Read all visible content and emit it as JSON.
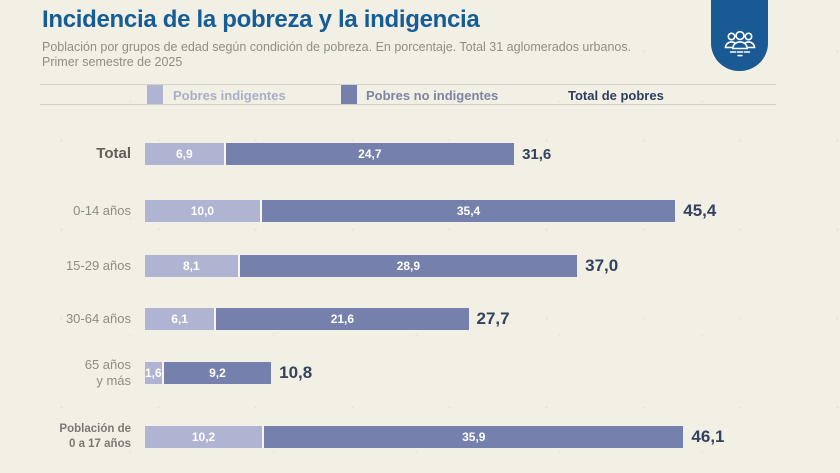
{
  "header": {
    "title": "Incidencia de la pobreza y la indigencia",
    "subtitle_line1": "Población por grupos de edad según condición de pobreza. En porcentaje. Total 31 aglomerados urbanos.",
    "subtitle_line2": "Primer semestre de 2025"
  },
  "badge": {
    "icon": "people-group-icon",
    "color": "#1a5a94"
  },
  "legend": {
    "items": [
      {
        "label": "Pobres indigentes",
        "swatch": "#aeb4d2"
      },
      {
        "label": "Pobres no indigentes",
        "swatch": "#7680ad"
      },
      {
        "label": "Total de pobres",
        "swatch": null
      }
    ]
  },
  "colors": {
    "background": "#f2efe4",
    "title": "#155d96",
    "subtitle": "#918e86",
    "bar_light": "#aeb4d2",
    "bar_dark": "#7680ad",
    "total_label": "#33425f",
    "category_label": "#8f8c83",
    "rule_line": "#d3d0c5"
  },
  "chart_data": {
    "type": "bar",
    "orientation": "horizontal",
    "stacked": true,
    "title": "Incidencia de la pobreza y la indigencia",
    "xlabel": "",
    "ylabel": "",
    "xlim": [
      0,
      50
    ],
    "grid": false,
    "legend_position": "top",
    "value_format": "decimal-comma",
    "categories": [
      "Total",
      "0-14 años",
      "15-29 años",
      "30-64 años",
      "65 años y más",
      "Población de 0 a 17 años"
    ],
    "series": [
      {
        "name": "Pobres indigentes",
        "values": [
          6.9,
          10.0,
          8.1,
          6.1,
          1.6,
          10.2
        ]
      },
      {
        "name": "Pobres no indigentes",
        "values": [
          24.7,
          35.4,
          28.9,
          21.6,
          9.2,
          35.9
        ]
      }
    ],
    "totals": [
      31.6,
      45.4,
      37.0,
      27.7,
      10.8,
      46.1
    ]
  },
  "rows": [
    {
      "label_line1": "Total",
      "label_line2": "",
      "v1": "6,9",
      "v2": "24,7",
      "total": "31,6"
    },
    {
      "label_line1": "0-14 años",
      "label_line2": "",
      "v1": "10,0",
      "v2": "35,4",
      "total": "45,4"
    },
    {
      "label_line1": "15-29 años",
      "label_line2": "",
      "v1": "8,1",
      "v2": "28,9",
      "total": "37,0"
    },
    {
      "label_line1": "30-64 años",
      "label_line2": "",
      "v1": "6,1",
      "v2": "21,6",
      "total": "27,7"
    },
    {
      "label_line1": "65 años",
      "label_line2": "y más",
      "v1": "1,6",
      "v2": "9,2",
      "total": "10,8"
    },
    {
      "label_line1": "Población de",
      "label_line2": "0 a 17 años",
      "v1": "10,2",
      "v2": "35,9",
      "total": "46,1"
    }
  ]
}
